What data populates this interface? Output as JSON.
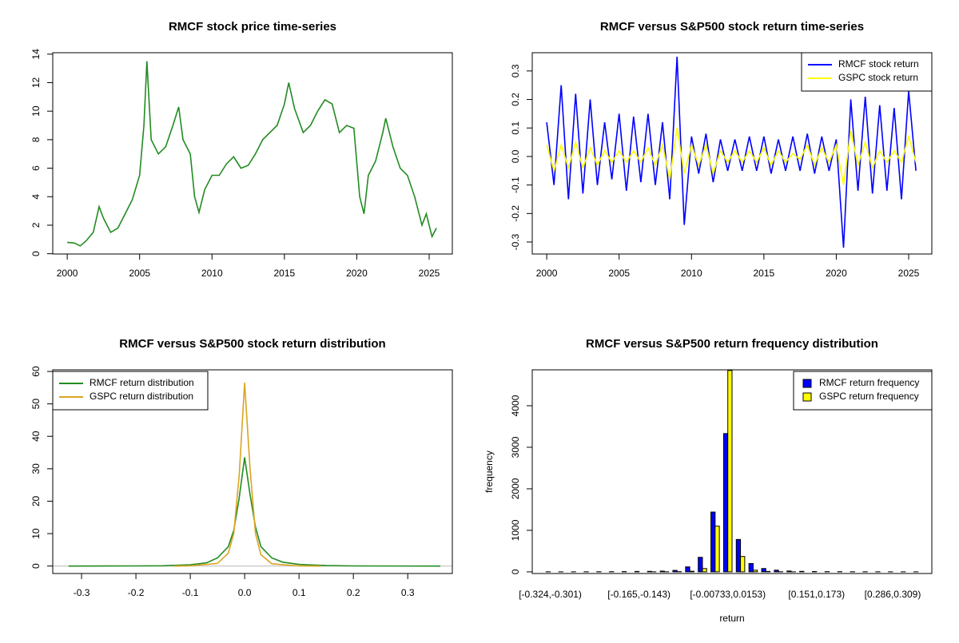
{
  "chart_data": [
    {
      "type": "line",
      "title": "RMCF stock price time-series",
      "color": "#228b22",
      "x": [
        2000.0,
        2000.5,
        2000.9,
        2001.3,
        2001.8,
        2002.2,
        2002.5,
        2003.0,
        2003.5,
        2004.0,
        2004.5,
        2005.0,
        2005.3,
        2005.5,
        2005.8,
        2006.3,
        2006.8,
        2007.3,
        2007.7,
        2008.0,
        2008.5,
        2008.8,
        2009.1,
        2009.5,
        2010.0,
        2010.5,
        2011.0,
        2011.5,
        2012.0,
        2012.5,
        2013.0,
        2013.5,
        2014.0,
        2014.5,
        2015.0,
        2015.3,
        2015.7,
        2016.3,
        2016.8,
        2017.3,
        2017.8,
        2018.3,
        2018.8,
        2019.3,
        2019.8,
        2020.2,
        2020.5,
        2020.8,
        2021.3,
        2021.8,
        2022.0,
        2022.5,
        2023.0,
        2023.5,
        2024.0,
        2024.5,
        2024.8,
        2025.2,
        2025.5
      ],
      "values": [
        0.8,
        0.75,
        0.55,
        0.9,
        1.5,
        3.3,
        2.5,
        1.5,
        1.8,
        2.8,
        3.8,
        5.5,
        9,
        13.5,
        8,
        7,
        7.5,
        9,
        10.3,
        8,
        7,
        4,
        2.9,
        4.5,
        5.5,
        5.5,
        6.3,
        6.8,
        6.0,
        6.2,
        7.0,
        8.0,
        8.5,
        9.0,
        10.5,
        12.0,
        10.2,
        8.5,
        9.0,
        10.0,
        10.8,
        10.5,
        8.5,
        9.0,
        8.8,
        4.0,
        2.8,
        5.5,
        6.5,
        8.5,
        9.5,
        7.5,
        6.0,
        5.5,
        4.0,
        2.0,
        2.8,
        1.2,
        1.8
      ],
      "xlim": [
        1999,
        2026.6
      ],
      "xticks": [
        2000,
        2005,
        2010,
        2015,
        2020,
        2025
      ],
      "ylim": [
        -0.02,
        14.1
      ],
      "yticks": [
        0,
        2,
        4,
        6,
        8,
        10,
        12,
        14
      ]
    },
    {
      "type": "line",
      "title": "RMCF versus S&P500 stock return time-series",
      "legend": "topright",
      "x": [
        2000,
        2000.5,
        2001,
        2001.5,
        2002,
        2002.5,
        2003,
        2003.5,
        2004,
        2004.5,
        2005,
        2005.5,
        2006,
        2006.5,
        2007,
        2007.5,
        2008,
        2008.5,
        2009,
        2009.5,
        2010,
        2010.5,
        2011,
        2011.5,
        2012,
        2012.5,
        2013,
        2013.5,
        2014,
        2014.5,
        2015,
        2015.5,
        2016,
        2016.5,
        2017,
        2017.5,
        2018,
        2018.5,
        2019,
        2019.5,
        2020,
        2020.5,
        2021,
        2021.5,
        2022,
        2022.5,
        2023,
        2023.5,
        2024,
        2024.5,
        2025,
        2025.5
      ],
      "series": [
        {
          "name": "RMCF stock return",
          "color": "#0000ff",
          "values": [
            0.12,
            -0.1,
            0.25,
            -0.15,
            0.22,
            -0.13,
            0.2,
            -0.1,
            0.12,
            -0.08,
            0.15,
            -0.12,
            0.14,
            -0.09,
            0.15,
            -0.1,
            0.12,
            -0.15,
            0.35,
            -0.24,
            0.07,
            -0.06,
            0.08,
            -0.09,
            0.06,
            -0.05,
            0.06,
            -0.05,
            0.07,
            -0.05,
            0.07,
            -0.06,
            0.06,
            -0.05,
            0.07,
            -0.05,
            0.08,
            -0.06,
            0.07,
            -0.05,
            0.06,
            -0.32,
            0.2,
            -0.12,
            0.21,
            -0.13,
            0.18,
            -0.12,
            0.17,
            -0.15,
            0.23,
            -0.05
          ]
        },
        {
          "name": "GSPC stock return",
          "color": "#ffff00",
          "values": [
            0.04,
            -0.05,
            0.04,
            -0.04,
            0.05,
            -0.04,
            0.03,
            -0.03,
            0.02,
            -0.02,
            0.02,
            -0.02,
            0.02,
            -0.02,
            0.03,
            -0.03,
            0.04,
            -0.08,
            0.1,
            -0.06,
            0.04,
            -0.03,
            0.04,
            -0.06,
            0.02,
            -0.02,
            0.02,
            -0.02,
            0.02,
            -0.02,
            0.03,
            -0.03,
            0.02,
            -0.02,
            0.01,
            -0.01,
            0.04,
            -0.03,
            0.03,
            -0.02,
            0.04,
            -0.1,
            0.09,
            -0.03,
            0.05,
            -0.04,
            0.02,
            -0.02,
            0.02,
            -0.02,
            0.07,
            -0.02
          ]
        }
      ],
      "xlim": [
        1999,
        2026.6
      ],
      "xticks": [
        2000,
        2005,
        2010,
        2015,
        2020,
        2025
      ],
      "ylim": [
        -0.342,
        0.364
      ],
      "yticks": [
        -0.3,
        -0.2,
        -0.1,
        {
          "value": 0,
          "label": "0.0"
        },
        0.1,
        0.2,
        0.3
      ]
    },
    {
      "type": "line",
      "title": "RMCF versus S&P500 stock return distribution",
      "legend": "topleft",
      "series": [
        {
          "name": "RMCF return distribution",
          "color": "#228b22",
          "x": [
            -0.324,
            -0.2,
            -0.15,
            -0.1,
            -0.07,
            -0.05,
            -0.03,
            -0.02,
            -0.01,
            0,
            0.01,
            0.02,
            0.03,
            0.05,
            0.07,
            0.1,
            0.15,
            0.2,
            0.36
          ],
          "values": [
            0,
            0.05,
            0.1,
            0.4,
            1,
            2.5,
            6,
            11,
            21,
            33.5,
            22,
            12,
            6,
            2.5,
            1.2,
            0.5,
            0.15,
            0.05,
            0
          ]
        },
        {
          "name": "GSPC return distribution",
          "color": "#daa520",
          "x": [
            -0.13,
            -0.1,
            -0.05,
            -0.03,
            -0.02,
            -0.01,
            0,
            0.01,
            0.02,
            0.03,
            0.05,
            0.1,
            0.14
          ],
          "values": [
            0,
            0.1,
            0.8,
            4,
            10,
            28,
            56.5,
            30,
            10,
            3.5,
            0.7,
            0.05,
            0
          ]
        }
      ],
      "xlim": [
        -0.353,
        0.382
      ],
      "xticks": [
        -0.3,
        -0.2,
        -0.1,
        {
          "value": 0,
          "label": "0.0"
        },
        0.1,
        0.2,
        0.3
      ],
      "ylim": [
        -2.3,
        60.5
      ],
      "yticks": [
        0,
        10,
        20,
        30,
        40,
        50,
        60
      ]
    },
    {
      "type": "bar",
      "title": "RMCF versus S&P500 return frequency distribution",
      "legend": "topright",
      "x_label": "return",
      "y_label": "frequency",
      "categories": [
        "[-0.324,-0.301)",
        null,
        null,
        null,
        null,
        null,
        null,
        "[-0.165,-0.143)",
        null,
        null,
        null,
        null,
        null,
        null,
        "[-0.00733,0.0153)",
        null,
        null,
        null,
        null,
        null,
        null,
        "[0.151,0.173)",
        null,
        null,
        null,
        null,
        null,
        "[0.286,0.309)",
        null,
        null
      ],
      "series": [
        {
          "name": "RMCF return frequency",
          "color": "#0000ff",
          "values": [
            2,
            1,
            1,
            2,
            3,
            4,
            6,
            10,
            12,
            18,
            35,
            120,
            350,
            1440,
            3330,
            780,
            200,
            80,
            40,
            20,
            12,
            8,
            5,
            4,
            3,
            2,
            2,
            1,
            1,
            1
          ]
        },
        {
          "name": "GSPC return frequency",
          "color": "#ffff00",
          "values": [
            0,
            0,
            0,
            0,
            0,
            0,
            0,
            0,
            1,
            2,
            5,
            15,
            80,
            1100,
            4850,
            370,
            40,
            10,
            3,
            1,
            0,
            0,
            0,
            0,
            0,
            0,
            0,
            0,
            0,
            0
          ]
        }
      ],
      "ylim": [
        -40,
        4865
      ],
      "yticks": [
        0,
        1000,
        2000,
        3000,
        4000
      ]
    }
  ]
}
